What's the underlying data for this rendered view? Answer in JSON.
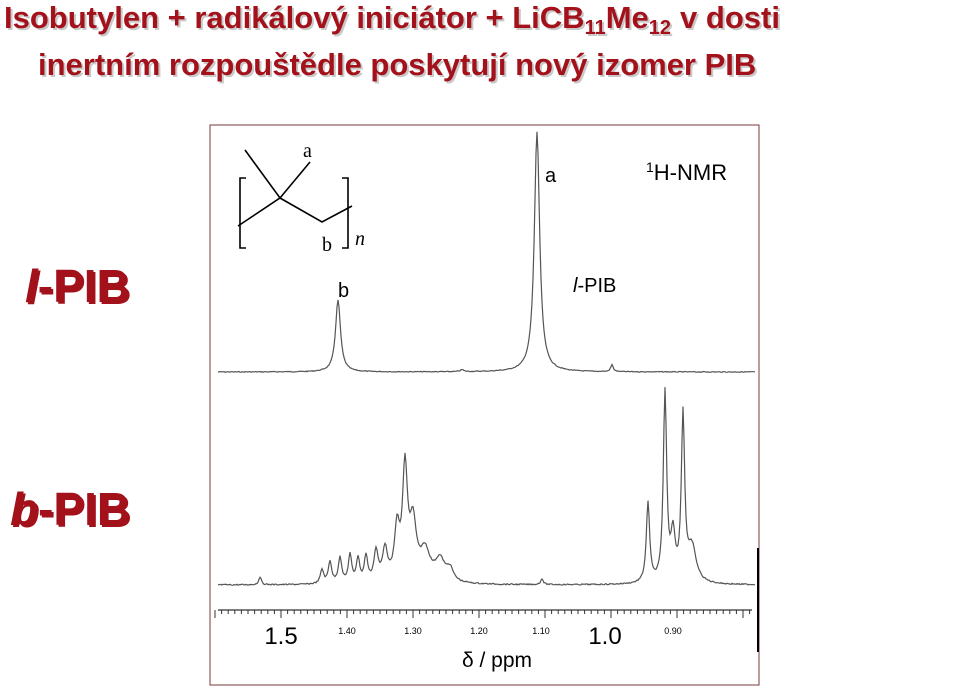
{
  "title": {
    "line1": "Isobutylen + radikálový iniciátor + LiCB",
    "sub1": "11",
    "mid": "Me",
    "sub2": "12",
    "end": "v dosti",
    "line2": "inertním rozpouštědle poskytují nový izomer PIB"
  },
  "side_labels": [
    {
      "prefix": "l",
      "suffix": "-PIB"
    },
    {
      "prefix": "b",
      "suffix": "-PIB"
    }
  ],
  "spectrum": {
    "structure_labels": {
      "a": "a",
      "b": "b",
      "n": "n"
    },
    "peak_labels": {
      "a": "a",
      "b": "b"
    },
    "method": {
      "superscript": "1",
      "text": "H-NMR"
    },
    "sample": {
      "prefix": "l",
      "suffix": "-PIB"
    },
    "axis": {
      "major_labels": [
        "1.5",
        "1.0"
      ],
      "minor_labels": [
        "1.40",
        "1.30",
        "1.20",
        "1.10",
        "0.90"
      ],
      "title": "δ / ppm"
    }
  }
}
